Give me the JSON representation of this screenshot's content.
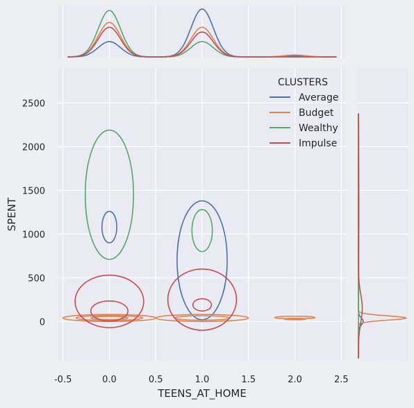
{
  "chart_data": {
    "type": "jointplot-kde",
    "xlabel": "TEENS_AT_HOME",
    "ylabel": "SPENT",
    "xlim": [
      -0.55,
      2.55
    ],
    "ylim": [
      -450,
      2900
    ],
    "x_ticks": [
      -0.5,
      0.0,
      0.5,
      1.0,
      1.5,
      2.0,
      2.5
    ],
    "x_tick_labels": [
      "-0.5",
      "0.0",
      "0.5",
      "1.0",
      "1.5",
      "2.0",
      "2.5"
    ],
    "y_ticks": [
      0,
      500,
      1000,
      1500,
      2000,
      2500
    ],
    "y_tick_labels": [
      "0",
      "500",
      "1000",
      "1500",
      "2000",
      "2500"
    ],
    "grid": true,
    "legend": {
      "title": "CLUSTERS",
      "placement": "top-right"
    },
    "series": [
      {
        "name": "Average",
        "color": "#4c72b0",
        "contours": [
          {
            "cx": 1.0,
            "cy": 700,
            "rx": 0.27,
            "ry": 680
          },
          {
            "cx": 0.0,
            "cy": 1080,
            "rx": 0.08,
            "ry": 180
          }
        ],
        "marginal_x": [
          {
            "mu": 0.0,
            "sigma": 0.12,
            "height": 0.32
          },
          {
            "mu": 1.0,
            "sigma": 0.12,
            "height": 1.0
          },
          {
            "mu": 2.0,
            "sigma": 0.12,
            "height": 0.02
          }
        ],
        "marginal_y": [
          {
            "mu": 0,
            "sigma": 40,
            "height": 0.1
          }
        ]
      },
      {
        "name": "Budget",
        "color": "#dd8452",
        "contours": [
          {
            "cx": 0.0,
            "cy": 40,
            "rx": 0.5,
            "ry": 40
          },
          {
            "cx": 0.0,
            "cy": 40,
            "rx": 0.36,
            "ry": 28
          },
          {
            "cx": 0.0,
            "cy": 40,
            "rx": 0.2,
            "ry": 18
          },
          {
            "cx": 1.0,
            "cy": 40,
            "rx": 0.5,
            "ry": 40
          },
          {
            "cx": 1.0,
            "cy": 40,
            "rx": 0.3,
            "ry": 25
          },
          {
            "cx": 2.0,
            "cy": 45,
            "rx": 0.22,
            "ry": 15
          },
          {
            "cx": 2.0,
            "cy": 28,
            "rx": 0.12,
            "ry": 8
          }
        ],
        "marginal_x": [
          {
            "mu": 0.0,
            "sigma": 0.12,
            "height": 0.72
          },
          {
            "mu": 1.0,
            "sigma": 0.12,
            "height": 0.62
          },
          {
            "mu": 2.0,
            "sigma": 0.12,
            "height": 0.04
          }
        ],
        "marginal_y": [
          {
            "mu": 40,
            "sigma": 25,
            "height": 1.0
          }
        ]
      },
      {
        "name": "Wealthy",
        "color": "#55a868",
        "contours": [
          {
            "cx": 0.0,
            "cy": 1450,
            "rx": 0.26,
            "ry": 740
          },
          {
            "cx": 1.0,
            "cy": 1040,
            "rx": 0.11,
            "ry": 240
          }
        ],
        "marginal_x": [
          {
            "mu": 0.0,
            "sigma": 0.12,
            "height": 0.97
          },
          {
            "mu": 1.0,
            "sigma": 0.12,
            "height": 0.32
          }
        ],
        "marginal_y": [
          {
            "mu": 1300,
            "sigma": 700,
            "height": 0.01
          }
        ]
      },
      {
        "name": "Impulse",
        "color": "#c44e52",
        "contours": [
          {
            "cx": 0.0,
            "cy": 230,
            "rx": 0.37,
            "ry": 300
          },
          {
            "cx": 0.0,
            "cy": 120,
            "rx": 0.2,
            "ry": 115
          },
          {
            "cx": 1.0,
            "cy": 250,
            "rx": 0.37,
            "ry": 350
          },
          {
            "cx": 1.0,
            "cy": 190,
            "rx": 0.1,
            "ry": 70
          }
        ],
        "marginal_x": [
          {
            "mu": 0.0,
            "sigma": 0.12,
            "height": 0.62
          },
          {
            "mu": 1.0,
            "sigma": 0.12,
            "height": 0.52
          }
        ],
        "marginal_y": [
          {
            "mu": 150,
            "sigma": 160,
            "height": 0.08
          }
        ]
      }
    ]
  }
}
